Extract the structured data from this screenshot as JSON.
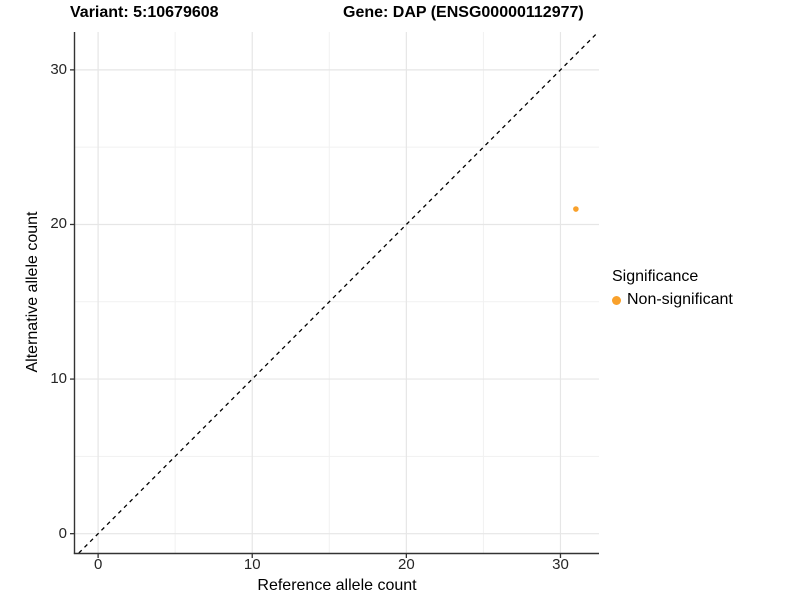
{
  "chart_data": {
    "type": "scatter",
    "title_left": "Variant: 5:10679608",
    "title_right": "Gene: DAP (ENSG00000112977)",
    "xlabel": "Reference allele count",
    "ylabel": "Alternative allele count",
    "xlim": [
      -1.5,
      32.5
    ],
    "ylim": [
      -1.25,
      32.45
    ],
    "xticks": [
      0,
      10,
      20,
      30
    ],
    "yticks": [
      0,
      10,
      20,
      30
    ],
    "xminor": [
      5,
      15,
      25
    ],
    "yminor": [
      5,
      15,
      25
    ],
    "grid": "major+minor, light gray on white",
    "identity_line": {
      "slope": 1,
      "intercept": 0,
      "style": "dashed",
      "color": "#000000"
    },
    "series": [
      {
        "name": "Non-significant",
        "color": "#F9A12B",
        "points": [
          {
            "x": 31,
            "y": 21
          }
        ]
      }
    ],
    "legend": {
      "title": "Significance",
      "position": "right",
      "items": [
        {
          "label": "Non-significant",
          "color": "#F9A12B"
        }
      ]
    },
    "style_colors": {
      "major_grid": "#E6E6E6",
      "minor_grid": "#F1F1F1",
      "axis_line": "#333333",
      "tick_text": "#262626"
    }
  }
}
